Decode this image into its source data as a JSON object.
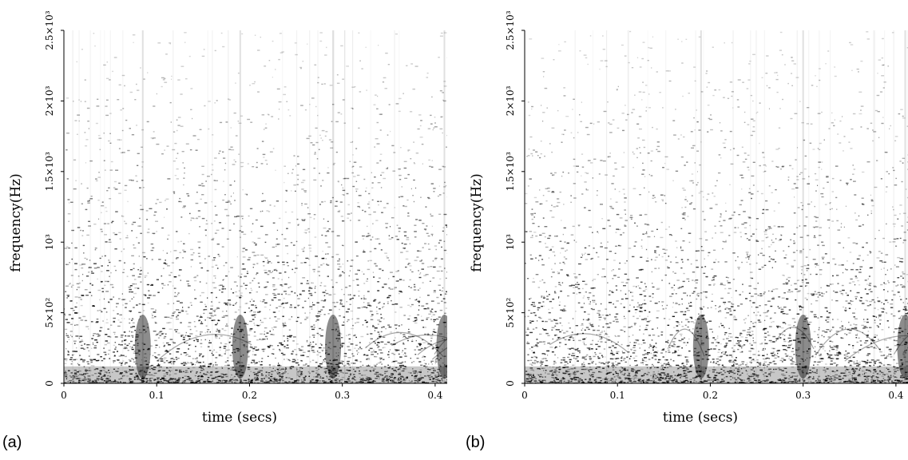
{
  "chart_data": [
    {
      "type": "heatmap",
      "panel_label": "(a)",
      "xlabel": "time (secs)",
      "ylabel": "frequency(Hz)",
      "xlim": [
        0,
        0.413
      ],
      "ylim": [
        0,
        2500
      ],
      "x_ticks": [
        {
          "value": 0,
          "label": "0"
        },
        {
          "value": 0.1,
          "label": "0.1"
        },
        {
          "value": 0.2,
          "label": "0.2"
        },
        {
          "value": 0.3,
          "label": "0.3"
        },
        {
          "value": 0.4,
          "label": "0.4"
        }
      ],
      "y_ticks": [
        {
          "value": 0,
          "label": "0"
        },
        {
          "value": 500,
          "label": "5×10²"
        },
        {
          "value": 1000,
          "label": "10³"
        },
        {
          "value": 1500,
          "label": "1.5×10³"
        },
        {
          "value": 2000,
          "label": "2×10³"
        },
        {
          "value": 2500,
          "label": "2.5×10³"
        }
      ],
      "colormap": "grayscale (white = low, black = high)",
      "dense_energy_band_hz": [
        0,
        450
      ],
      "transients_at_secs": [
        0.085,
        0.19,
        0.29,
        0.41
      ]
    },
    {
      "type": "heatmap",
      "panel_label": "(b)",
      "xlabel": "time (secs)",
      "ylabel": "frequency(Hz)",
      "xlim": [
        0,
        0.413
      ],
      "ylim": [
        0,
        2500
      ],
      "x_ticks": [
        {
          "value": 0,
          "label": "0"
        },
        {
          "value": 0.1,
          "label": "0.1"
        },
        {
          "value": 0.2,
          "label": "0.2"
        },
        {
          "value": 0.3,
          "label": "0.3"
        },
        {
          "value": 0.4,
          "label": "0.4"
        }
      ],
      "y_ticks": [
        {
          "value": 0,
          "label": "0"
        },
        {
          "value": 500,
          "label": "5×10²"
        },
        {
          "value": 1000,
          "label": "10³"
        },
        {
          "value": 1500,
          "label": "1.5×10³"
        },
        {
          "value": 2000,
          "label": "2×10³"
        },
        {
          "value": 2500,
          "label": "2.5×10³"
        }
      ],
      "colormap": "grayscale (white = low, black = high)",
      "dense_energy_band_hz": [
        0,
        450
      ],
      "transients_at_secs": [
        0.19,
        0.3,
        0.41
      ]
    }
  ]
}
